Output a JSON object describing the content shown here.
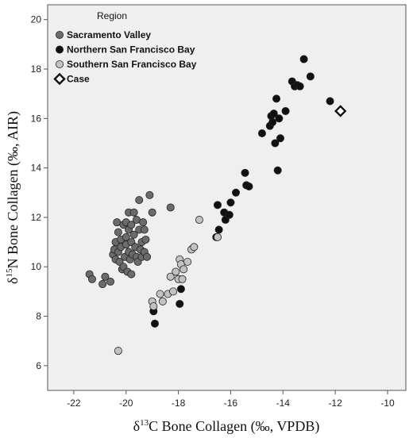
{
  "chart_data": {
    "type": "scatter",
    "title": "",
    "xlabel": {
      "pre": "δ",
      "sup": "13",
      "post": "C Bone Collagen (‰, VPDB)"
    },
    "ylabel": {
      "pre": "δ",
      "sup": "15",
      "post": "N Bone Collagen (‰, AIR)"
    },
    "xlim": [
      -23,
      -9.3
    ],
    "ylim": [
      5.0,
      20.6
    ],
    "xticks": [
      -22,
      -20,
      -18,
      -16,
      -14,
      -12,
      -10
    ],
    "yticks": [
      6,
      8,
      10,
      12,
      14,
      16,
      18,
      20
    ],
    "xtick_labels": [
      "-22",
      "-20",
      "-18",
      "-16",
      "-14",
      "-12",
      "-10"
    ],
    "ytick_labels": [
      "6",
      "8",
      "10",
      "12",
      "14",
      "16",
      "18",
      "20"
    ],
    "grid": false,
    "legend": {
      "title": "Region",
      "position": "top-left"
    },
    "series": [
      {
        "name": "Sacramento Valley",
        "marker": "circle",
        "color": "#6b6b6b",
        "points": [
          [
            -21.4,
            9.7
          ],
          [
            -21.3,
            9.5
          ],
          [
            -20.9,
            9.3
          ],
          [
            -20.8,
            9.6
          ],
          [
            -20.6,
            9.4
          ],
          [
            -20.5,
            10.5
          ],
          [
            -20.45,
            10.7
          ],
          [
            -20.4,
            10.3
          ],
          [
            -20.4,
            11.0
          ],
          [
            -20.35,
            11.8
          ],
          [
            -20.3,
            10.6
          ],
          [
            -20.3,
            11.4
          ],
          [
            -20.25,
            10.2
          ],
          [
            -20.2,
            11.1
          ],
          [
            -20.2,
            10.8
          ],
          [
            -20.15,
            9.9
          ],
          [
            -20.1,
            10.0
          ],
          [
            -20.1,
            11.7
          ],
          [
            -20.05,
            10.4
          ],
          [
            -20.0,
            11.2
          ],
          [
            -20.0,
            10.9
          ],
          [
            -20.0,
            11.8
          ],
          [
            -19.95,
            9.8
          ],
          [
            -19.9,
            10.6
          ],
          [
            -19.9,
            11.5
          ],
          [
            -19.9,
            12.2
          ],
          [
            -19.85,
            10.3
          ],
          [
            -19.8,
            9.7
          ],
          [
            -19.8,
            11.0
          ],
          [
            -19.8,
            11.7
          ],
          [
            -19.75,
            10.5
          ],
          [
            -19.7,
            12.2
          ],
          [
            -19.7,
            11.3
          ],
          [
            -19.65,
            10.8
          ],
          [
            -19.6,
            10.4
          ],
          [
            -19.6,
            11.9
          ],
          [
            -19.55,
            10.2
          ],
          [
            -19.5,
            12.7
          ],
          [
            -19.5,
            11.5
          ],
          [
            -19.45,
            10.7
          ],
          [
            -19.4,
            11.0
          ],
          [
            -19.4,
            10.4
          ],
          [
            -19.35,
            11.8
          ],
          [
            -19.3,
            11.5
          ],
          [
            -19.3,
            10.6
          ],
          [
            -19.25,
            11.1
          ],
          [
            -19.2,
            10.4
          ],
          [
            -19.1,
            12.9
          ],
          [
            -19.0,
            12.2
          ],
          [
            -18.3,
            12.4
          ]
        ]
      },
      {
        "name": "Northern San Francisco Bay",
        "marker": "circle",
        "color": "#111111",
        "points": [
          [
            -18.95,
            8.2
          ],
          [
            -18.9,
            7.7
          ],
          [
            -17.95,
            8.5
          ],
          [
            -17.9,
            9.1
          ],
          [
            -16.55,
            11.2
          ],
          [
            -16.5,
            12.5
          ],
          [
            -16.45,
            11.5
          ],
          [
            -16.25,
            12.2
          ],
          [
            -16.2,
            11.9
          ],
          [
            -16.05,
            12.1
          ],
          [
            -16.0,
            12.6
          ],
          [
            -15.8,
            13.0
          ],
          [
            -15.45,
            13.8
          ],
          [
            -15.4,
            13.3
          ],
          [
            -15.3,
            13.25
          ],
          [
            -14.8,
            15.4
          ],
          [
            -14.5,
            15.7
          ],
          [
            -14.45,
            16.1
          ],
          [
            -14.4,
            15.85
          ],
          [
            -14.35,
            16.2
          ],
          [
            -14.3,
            15.0
          ],
          [
            -14.25,
            16.8
          ],
          [
            -14.2,
            13.9
          ],
          [
            -14.15,
            16.0
          ],
          [
            -14.1,
            15.2
          ],
          [
            -13.9,
            16.3
          ],
          [
            -13.65,
            17.5
          ],
          [
            -13.55,
            17.3
          ],
          [
            -13.45,
            17.35
          ],
          [
            -13.35,
            17.3
          ],
          [
            -13.2,
            18.4
          ],
          [
            -12.95,
            17.7
          ],
          [
            -12.2,
            16.7
          ]
        ]
      },
      {
        "name": "Southern San Francisco Bay",
        "marker": "circle",
        "color": "#c2c2c2",
        "points": [
          [
            -20.3,
            6.6
          ],
          [
            -19.0,
            8.6
          ],
          [
            -18.95,
            8.4
          ],
          [
            -18.7,
            8.9
          ],
          [
            -18.6,
            8.6
          ],
          [
            -18.4,
            8.9
          ],
          [
            -18.3,
            9.6
          ],
          [
            -18.2,
            9.0
          ],
          [
            -18.1,
            9.8
          ],
          [
            -18.0,
            9.5
          ],
          [
            -17.95,
            10.3
          ],
          [
            -17.9,
            10.1
          ],
          [
            -17.85,
            9.5
          ],
          [
            -17.8,
            9.9
          ],
          [
            -17.65,
            10.2
          ],
          [
            -17.5,
            10.7
          ],
          [
            -17.4,
            10.8
          ],
          [
            -17.2,
            11.9
          ],
          [
            -16.5,
            11.2
          ]
        ]
      },
      {
        "name": "Case",
        "marker": "diamond-open",
        "color": "#ffffff",
        "points": [
          [
            -11.8,
            16.3
          ]
        ]
      }
    ]
  }
}
